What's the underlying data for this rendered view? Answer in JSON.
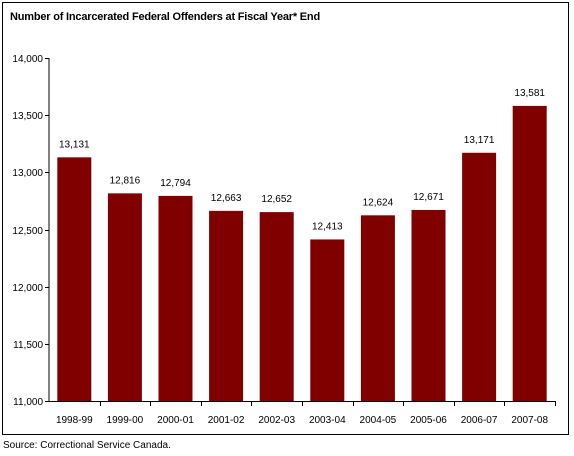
{
  "chart_data": {
    "type": "bar",
    "title": "Number of Incarcerated Federal Offenders at Fiscal Year* End",
    "categories": [
      "1998-99",
      "1999-00",
      "2000-01",
      "2001-02",
      "2002-03",
      "2003-04",
      "2004-05",
      "2005-06",
      "2006-07",
      "2007-08"
    ],
    "values": [
      13131,
      12816,
      12794,
      12663,
      12652,
      12413,
      12624,
      12671,
      13171,
      13581
    ],
    "value_labels": [
      "13,131",
      "12,816",
      "12,794",
      "12,663",
      "12,652",
      "12,413",
      "12,624",
      "12,671",
      "13,171",
      "13,581"
    ],
    "yticks": [
      11000,
      11500,
      12000,
      12500,
      13000,
      13500,
      14000
    ],
    "ytick_labels": [
      "11,000",
      "11,500",
      "12,000",
      "12,500",
      "13,000",
      "13,500",
      "14,000"
    ],
    "ylim": [
      11000,
      14000
    ],
    "xlabel": "",
    "ylabel": "",
    "bar_color": "#800000",
    "grid": false,
    "legend": "none"
  },
  "footer": {
    "source": "Source: Correctional Service Canada."
  }
}
